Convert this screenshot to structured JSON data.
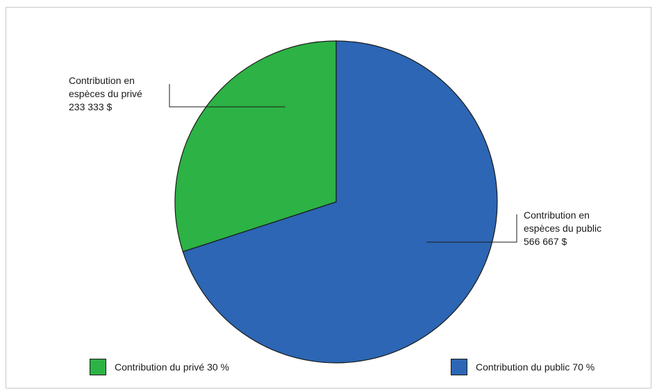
{
  "chart_data": {
    "type": "pie",
    "slices": [
      {
        "label": "Contribution du public 70 %",
        "percent": 70,
        "value": 566667,
        "color": "#2c66b4",
        "callout": [
          "Contribution en",
          "espèces du public",
          "566 667 $"
        ]
      },
      {
        "label": "Contribution du privé 30 %",
        "percent": 30,
        "value": 233333,
        "color": "#2db245",
        "callout": [
          "Contribution en",
          "espèces du privé",
          "233 333 $"
        ]
      }
    ],
    "start_angle": "12 o'clock",
    "direction": "clockwise",
    "legend_position": "bottom"
  }
}
